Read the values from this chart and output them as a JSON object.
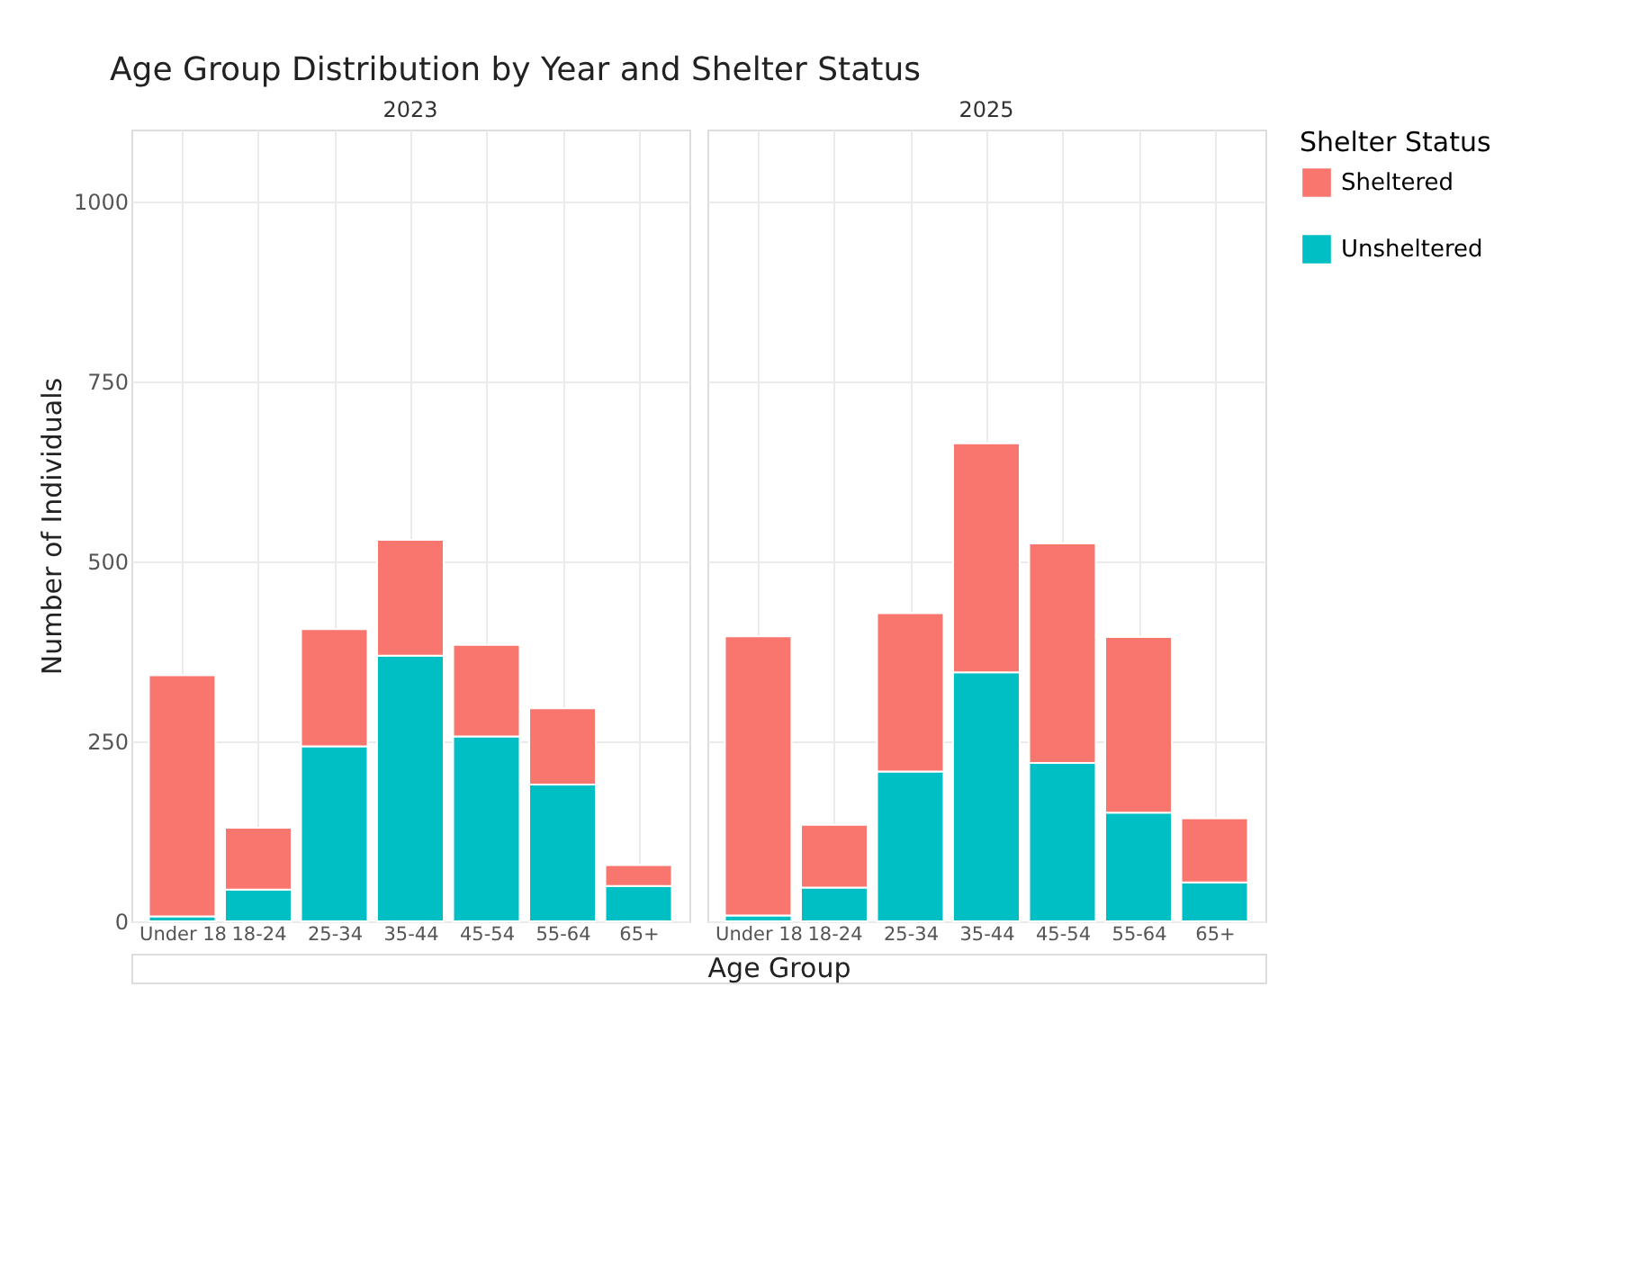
{
  "chart_data": [
    {
      "type": "bar",
      "stacked": true,
      "title": "Age Group Distribution by Year and Shelter Status",
      "subtitle": "2023",
      "ylabel": "Number of Individuals",
      "xlabel": "Age Group",
      "categories": [
        "Under 18",
        "18-24",
        "25-34",
        "35-44",
        "45-54",
        "55-64",
        "65+"
      ],
      "series": [
        {
          "name": "Unsheltered",
          "color": "#00bfc4",
          "values": [
            7,
            44,
            243,
            369,
            257,
            190,
            49
          ]
        },
        {
          "name": "Sheltered",
          "color": "#f8766d",
          "values": [
            335,
            86,
            163,
            161,
            127,
            106,
            29
          ]
        }
      ],
      "ylim": [
        0,
        1100
      ],
      "yticks": [
        0,
        250,
        500,
        750,
        1000
      ],
      "grid": true,
      "legend": "right"
    },
    {
      "type": "bar",
      "stacked": true,
      "subtitle": "2025",
      "legend_title": "Shelter Status",
      "categories": [
        "Under 18",
        "18-24",
        "25-34",
        "35-44",
        "45-54",
        "55-64",
        "65+"
      ],
      "series": [
        {
          "name": "Unsheltered",
          "color": "#00bfc4",
          "values": [
            8,
            47,
            208,
            346,
            220,
            151,
            54
          ]
        },
        {
          "name": "Sheltered",
          "color": "#f8766d",
          "values": [
            388,
            87,
            220,
            318,
            305,
            244,
            89
          ]
        }
      ],
      "ylim": [
        0,
        1100
      ],
      "yticks": [
        0,
        250,
        500,
        750,
        1000
      ],
      "grid": true,
      "legend": "right",
      "tick_labels": "x"
    }
  ]
}
